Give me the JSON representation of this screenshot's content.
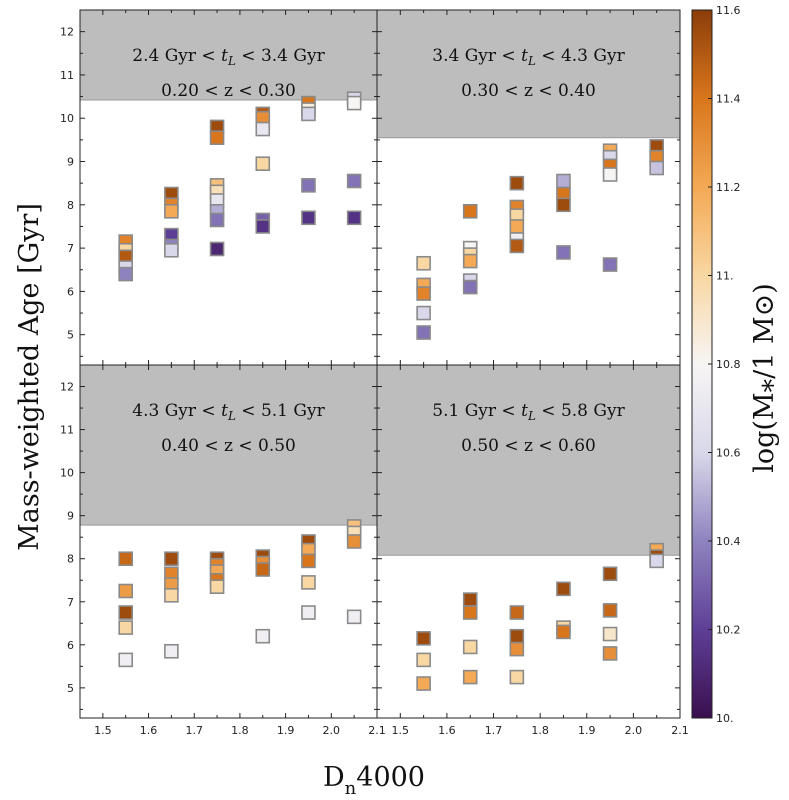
{
  "chart_data": {
    "type": "scatter",
    "xlabel": "Dₙ 4000",
    "ylabel": "Mass-weighted Age [Gyr]",
    "colorbar_label": "log(M⁎/1 M⊙)",
    "colorbar_range": [
      10.0,
      11.6
    ],
    "colorbar_ticks": [
      "10.",
      "10.2",
      "10.4",
      "10.6",
      "10.8",
      "11.",
      "11.2",
      "11.4",
      "11.6"
    ],
    "colormap": [
      "#3b0f4f",
      "#5e3f96",
      "#8f83bf",
      "#d9d8ea",
      "#f7f5f4",
      "#f8d7a3",
      "#f3a955",
      "#d9761c",
      "#8b3d0a"
    ],
    "xlim": [
      1.45,
      2.1
    ],
    "ylim": [
      4.3,
      12.5
    ],
    "x_ticks": [
      "1.5",
      "1.6",
      "1.7",
      "1.8",
      "1.9",
      "2.0",
      "2.1"
    ],
    "y_ticks": [
      "5",
      "6",
      "7",
      "8",
      "9",
      "10",
      "11",
      "12"
    ],
    "grid": false,
    "panels": [
      {
        "label_line1": "2.4 Gyr < t_L < 3.4 Gyr",
        "label_line2": "0.20 < z < 0.30",
        "shade_above": 10.42,
        "points": [
          {
            "x": 1.55,
            "y": 7.15,
            "m": 11.35
          },
          {
            "x": 1.55,
            "y": 6.95,
            "m": 11.0
          },
          {
            "x": 1.55,
            "y": 6.8,
            "m": 11.5
          },
          {
            "x": 1.55,
            "y": 6.55,
            "m": 10.6
          },
          {
            "x": 1.55,
            "y": 6.4,
            "m": 10.4
          },
          {
            "x": 1.65,
            "y": 8.25,
            "m": 11.55
          },
          {
            "x": 1.65,
            "y": 8.0,
            "m": 11.35
          },
          {
            "x": 1.65,
            "y": 7.85,
            "m": 11.2
          },
          {
            "x": 1.65,
            "y": 7.3,
            "m": 10.2
          },
          {
            "x": 1.65,
            "y": 7.05,
            "m": 10.4
          },
          {
            "x": 1.65,
            "y": 6.95,
            "m": 10.6
          },
          {
            "x": 1.75,
            "y": 9.8,
            "m": 11.55
          },
          {
            "x": 1.75,
            "y": 9.55,
            "m": 11.4
          },
          {
            "x": 1.75,
            "y": 8.45,
            "m": 11.1
          },
          {
            "x": 1.75,
            "y": 8.3,
            "m": 10.95
          },
          {
            "x": 1.75,
            "y": 8.1,
            "m": 10.7
          },
          {
            "x": 1.75,
            "y": 7.85,
            "m": 10.5
          },
          {
            "x": 1.75,
            "y": 7.65,
            "m": 10.35
          },
          {
            "x": 1.75,
            "y": 6.98,
            "m": 10.1
          },
          {
            "x": 1.85,
            "y": 10.1,
            "m": 11.5
          },
          {
            "x": 1.85,
            "y": 10.0,
            "m": 11.3
          },
          {
            "x": 1.85,
            "y": 9.75,
            "m": 10.7
          },
          {
            "x": 1.85,
            "y": 8.95,
            "m": 11.0
          },
          {
            "x": 1.85,
            "y": 7.65,
            "m": 10.3
          },
          {
            "x": 1.85,
            "y": 7.5,
            "m": 10.15
          },
          {
            "x": 1.95,
            "y": 10.35,
            "m": 11.4
          },
          {
            "x": 1.95,
            "y": 10.2,
            "m": 10.85
          },
          {
            "x": 1.95,
            "y": 10.1,
            "m": 10.6
          },
          {
            "x": 1.95,
            "y": 8.45,
            "m": 10.35
          },
          {
            "x": 1.95,
            "y": 7.7,
            "m": 10.15
          },
          {
            "x": 2.05,
            "y": 10.45,
            "m": 10.6
          },
          {
            "x": 2.05,
            "y": 10.35,
            "m": 10.8
          },
          {
            "x": 2.05,
            "y": 8.55,
            "m": 10.35
          },
          {
            "x": 2.05,
            "y": 7.7,
            "m": 10.15
          }
        ]
      },
      {
        "label_line1": "3.4 Gyr < t_L < 4.3 Gyr",
        "label_line2": "0.30 < z < 0.40",
        "shade_above": 9.55,
        "points": [
          {
            "x": 1.55,
            "y": 6.65,
            "m": 11.0
          },
          {
            "x": 1.55,
            "y": 6.15,
            "m": 11.2
          },
          {
            "x": 1.55,
            "y": 5.95,
            "m": 11.35
          },
          {
            "x": 1.55,
            "y": 5.5,
            "m": 10.6
          },
          {
            "x": 1.55,
            "y": 5.05,
            "m": 10.35
          },
          {
            "x": 1.65,
            "y": 7.85,
            "m": 11.4
          },
          {
            "x": 1.65,
            "y": 7.0,
            "m": 10.8
          },
          {
            "x": 1.65,
            "y": 6.85,
            "m": 11.0
          },
          {
            "x": 1.65,
            "y": 6.7,
            "m": 11.2
          },
          {
            "x": 1.65,
            "y": 6.25,
            "m": 10.6
          },
          {
            "x": 1.65,
            "y": 6.1,
            "m": 10.35
          },
          {
            "x": 1.75,
            "y": 8.5,
            "m": 11.55
          },
          {
            "x": 1.75,
            "y": 7.95,
            "m": 11.35
          },
          {
            "x": 1.75,
            "y": 7.75,
            "m": 11.0
          },
          {
            "x": 1.75,
            "y": 7.5,
            "m": 11.2
          },
          {
            "x": 1.75,
            "y": 7.2,
            "m": 10.75
          },
          {
            "x": 1.75,
            "y": 7.05,
            "m": 11.5
          },
          {
            "x": 1.85,
            "y": 8.55,
            "m": 10.5
          },
          {
            "x": 1.85,
            "y": 8.25,
            "m": 11.4
          },
          {
            "x": 1.85,
            "y": 8.0,
            "m": 11.55
          },
          {
            "x": 1.85,
            "y": 6.9,
            "m": 10.35
          },
          {
            "x": 1.95,
            "y": 9.25,
            "m": 11.2
          },
          {
            "x": 1.95,
            "y": 9.1,
            "m": 10.6
          },
          {
            "x": 1.95,
            "y": 8.9,
            "m": 11.4
          },
          {
            "x": 1.95,
            "y": 8.7,
            "m": 10.8
          },
          {
            "x": 1.95,
            "y": 6.62,
            "m": 10.35
          },
          {
            "x": 2.05,
            "y": 9.35,
            "m": 11.55
          },
          {
            "x": 2.05,
            "y": 9.1,
            "m": 11.35
          },
          {
            "x": 2.05,
            "y": 8.85,
            "m": 10.55
          }
        ]
      },
      {
        "label_line1": "4.3 Gyr < t_L < 5.1 Gyr",
        "label_line2": "0.40 < z < 0.50",
        "shade_above": 8.78,
        "points": [
          {
            "x": 1.55,
            "y": 8.0,
            "m": 11.45
          },
          {
            "x": 1.55,
            "y": 7.25,
            "m": 11.25
          },
          {
            "x": 1.55,
            "y": 6.75,
            "m": 11.55
          },
          {
            "x": 1.55,
            "y": 6.4,
            "m": 11.0
          },
          {
            "x": 1.55,
            "y": 5.65,
            "m": 10.75
          },
          {
            "x": 1.65,
            "y": 8.0,
            "m": 11.55
          },
          {
            "x": 1.65,
            "y": 7.65,
            "m": 11.35
          },
          {
            "x": 1.65,
            "y": 7.4,
            "m": 11.25
          },
          {
            "x": 1.65,
            "y": 7.15,
            "m": 11.0
          },
          {
            "x": 1.65,
            "y": 5.85,
            "m": 10.75
          },
          {
            "x": 1.75,
            "y": 8.0,
            "m": 11.55
          },
          {
            "x": 1.75,
            "y": 7.85,
            "m": 11.35
          },
          {
            "x": 1.75,
            "y": 7.7,
            "m": 11.2
          },
          {
            "x": 1.75,
            "y": 7.5,
            "m": 11.4
          },
          {
            "x": 1.75,
            "y": 7.35,
            "m": 11.0
          },
          {
            "x": 1.85,
            "y": 8.05,
            "m": 11.55
          },
          {
            "x": 1.85,
            "y": 7.9,
            "m": 11.3
          },
          {
            "x": 1.85,
            "y": 7.75,
            "m": 11.45
          },
          {
            "x": 1.85,
            "y": 6.2,
            "m": 10.75
          },
          {
            "x": 1.95,
            "y": 8.4,
            "m": 11.55
          },
          {
            "x": 1.95,
            "y": 8.2,
            "m": 11.2
          },
          {
            "x": 1.95,
            "y": 7.95,
            "m": 11.4
          },
          {
            "x": 1.95,
            "y": 7.45,
            "m": 11.0
          },
          {
            "x": 1.95,
            "y": 6.75,
            "m": 10.75
          },
          {
            "x": 2.05,
            "y": 8.75,
            "m": 11.1
          },
          {
            "x": 2.05,
            "y": 8.6,
            "m": 10.95
          },
          {
            "x": 2.05,
            "y": 8.4,
            "m": 11.3
          },
          {
            "x": 2.05,
            "y": 6.65,
            "m": 10.75
          }
        ]
      },
      {
        "label_line1": "5.1 Gyr < t_L < 5.8 Gyr",
        "label_line2": "0.50 < z < 0.60",
        "shade_above": 8.08,
        "points": [
          {
            "x": 1.55,
            "y": 6.15,
            "m": 11.55
          },
          {
            "x": 1.55,
            "y": 5.65,
            "m": 11.0
          },
          {
            "x": 1.55,
            "y": 5.1,
            "m": 11.2
          },
          {
            "x": 1.65,
            "y": 7.05,
            "m": 11.55
          },
          {
            "x": 1.65,
            "y": 6.75,
            "m": 11.4
          },
          {
            "x": 1.65,
            "y": 5.95,
            "m": 11.0
          },
          {
            "x": 1.65,
            "y": 5.25,
            "m": 11.2
          },
          {
            "x": 1.75,
            "y": 6.75,
            "m": 11.45
          },
          {
            "x": 1.75,
            "y": 6.2,
            "m": 11.55
          },
          {
            "x": 1.75,
            "y": 5.9,
            "m": 11.3
          },
          {
            "x": 1.75,
            "y": 5.25,
            "m": 11.0
          },
          {
            "x": 1.85,
            "y": 7.3,
            "m": 11.55
          },
          {
            "x": 1.85,
            "y": 6.4,
            "m": 11.0
          },
          {
            "x": 1.85,
            "y": 6.3,
            "m": 11.4
          },
          {
            "x": 1.95,
            "y": 7.65,
            "m": 11.55
          },
          {
            "x": 1.95,
            "y": 6.8,
            "m": 11.45
          },
          {
            "x": 1.95,
            "y": 6.25,
            "m": 10.9
          },
          {
            "x": 1.95,
            "y": 5.8,
            "m": 11.3
          },
          {
            "x": 2.05,
            "y": 8.2,
            "m": 11.2
          },
          {
            "x": 2.05,
            "y": 8.05,
            "m": 11.55
          },
          {
            "x": 2.05,
            "y": 7.95,
            "m": 10.6
          }
        ]
      }
    ]
  }
}
